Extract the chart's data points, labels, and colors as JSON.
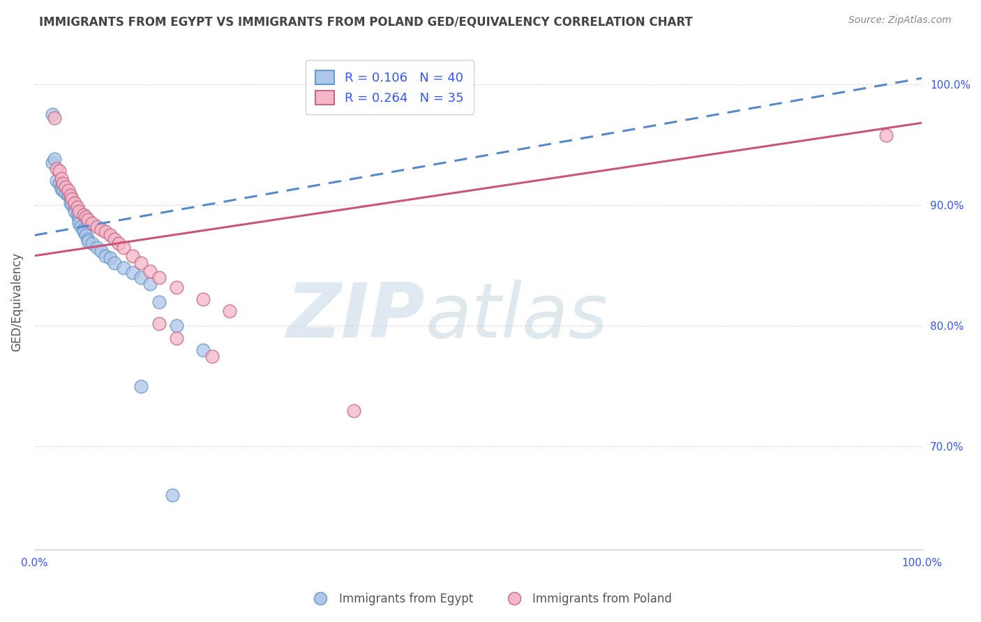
{
  "title": "IMMIGRANTS FROM EGYPT VS IMMIGRANTS FROM POLAND GED/EQUIVALENCY CORRELATION CHART",
  "source": "Source: ZipAtlas.com",
  "ylabel": "GED/Equivalency",
  "xlim": [
    0.0,
    1.0
  ],
  "ylim": [
    0.615,
    1.025
  ],
  "yticks": [
    0.7,
    0.8,
    0.9,
    1.0
  ],
  "ytick_labels": [
    "70.0%",
    "80.0%",
    "90.0%",
    "100.0%"
  ],
  "background_color": "#ffffff",
  "grid_color": "#dddddd",
  "title_color": "#444444",
  "source_color": "#888888",
  "egypt_face_color": "#aec6e8",
  "egypt_edge_color": "#6699cc",
  "poland_face_color": "#f4b8c8",
  "poland_edge_color": "#cc6688",
  "egypt_R": 0.106,
  "egypt_N": 40,
  "poland_R": 0.264,
  "poland_N": 35,
  "legend_text_color": "#3355ff",
  "trend_egypt_color": "#5588cc",
  "trend_poland_color": "#cc5577",
  "watermark_zip": "ZIP",
  "watermark_atlas": "atlas",
  "watermark_color_zip": "#c8d8e8",
  "watermark_color_atlas": "#b8ccd8",
  "egypt_x": [
    0.02,
    0.02,
    0.022,
    0.025,
    0.028,
    0.03,
    0.03,
    0.032,
    0.035,
    0.038,
    0.04,
    0.04,
    0.042,
    0.045,
    0.045,
    0.048,
    0.05,
    0.05,
    0.05,
    0.052,
    0.055,
    0.055,
    0.058,
    0.06,
    0.06,
    0.065,
    0.07,
    0.075,
    0.08,
    0.085,
    0.09,
    0.1,
    0.11,
    0.12,
    0.13,
    0.14,
    0.16,
    0.19,
    0.12,
    0.155
  ],
  "egypt_y": [
    0.975,
    0.935,
    0.938,
    0.92,
    0.918,
    0.915,
    0.913,
    0.912,
    0.91,
    0.908,
    0.905,
    0.902,
    0.9,
    0.898,
    0.895,
    0.892,
    0.89,
    0.888,
    0.885,
    0.882,
    0.88,
    0.878,
    0.875,
    0.872,
    0.87,
    0.868,
    0.865,
    0.862,
    0.858,
    0.856,
    0.852,
    0.848,
    0.844,
    0.84,
    0.835,
    0.82,
    0.8,
    0.78,
    0.75,
    0.66
  ],
  "poland_x": [
    0.022,
    0.025,
    0.028,
    0.03,
    0.032,
    0.035,
    0.038,
    0.04,
    0.042,
    0.045,
    0.048,
    0.05,
    0.055,
    0.058,
    0.06,
    0.065,
    0.07,
    0.075,
    0.08,
    0.085,
    0.09,
    0.095,
    0.1,
    0.11,
    0.12,
    0.13,
    0.14,
    0.16,
    0.19,
    0.22,
    0.14,
    0.16,
    0.2,
    0.36,
    0.96
  ],
  "poland_y": [
    0.972,
    0.93,
    0.928,
    0.922,
    0.918,
    0.915,
    0.912,
    0.908,
    0.905,
    0.902,
    0.898,
    0.895,
    0.892,
    0.89,
    0.888,
    0.885,
    0.882,
    0.88,
    0.878,
    0.875,
    0.872,
    0.868,
    0.865,
    0.858,
    0.852,
    0.845,
    0.84,
    0.832,
    0.822,
    0.812,
    0.802,
    0.79,
    0.775,
    0.73,
    0.958
  ],
  "trend_egypt_x0": 0.0,
  "trend_egypt_y0": 0.875,
  "trend_egypt_x1": 1.0,
  "trend_egypt_y1": 1.005,
  "trend_poland_x0": 0.0,
  "trend_poland_y0": 0.858,
  "trend_poland_x1": 1.0,
  "trend_poland_y1": 0.968
}
